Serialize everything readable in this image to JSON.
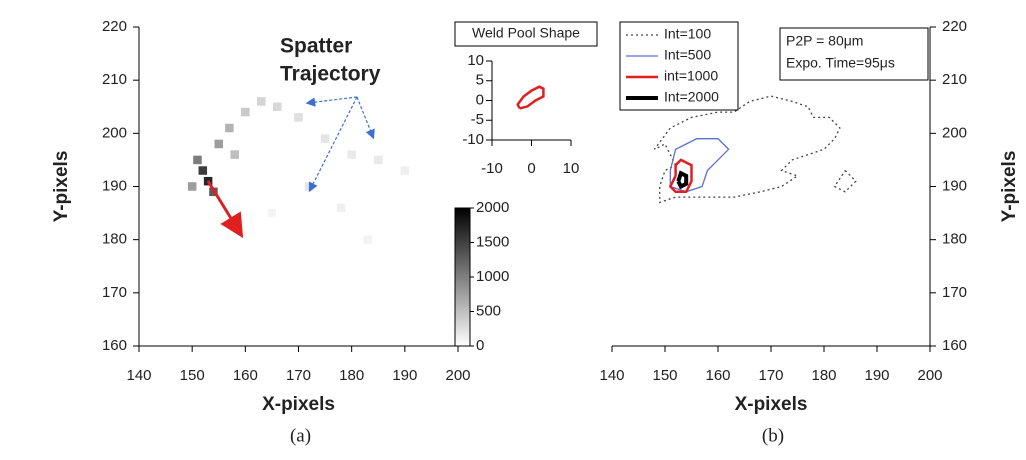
{
  "chart_data": [
    {
      "type": "heatmap",
      "caption": "(a)",
      "x_label": "X-pixels",
      "y_label": "Y-pixels",
      "annotation_lines": [
        "Spatter",
        "Trajectory"
      ],
      "xlim": [
        140,
        200
      ],
      "xticks": [
        140,
        150,
        160,
        170,
        180,
        190,
        200
      ],
      "ylim": [
        160,
        220
      ],
      "yticks": [
        160,
        170,
        180,
        190,
        200,
        210,
        220
      ],
      "x": [
        153,
        152,
        154,
        151,
        155,
        157,
        160,
        163,
        166,
        170,
        175,
        180,
        185,
        172,
        178,
        190,
        165,
        183,
        150,
        158
      ],
      "y": [
        191,
        193,
        189,
        195,
        198,
        201,
        204,
        206,
        205,
        203,
        199,
        196,
        195,
        190,
        186,
        193,
        185,
        180,
        190,
        196
      ],
      "values": [
        2000,
        1800,
        1500,
        1200,
        900,
        700,
        500,
        400,
        350,
        300,
        250,
        200,
        200,
        250,
        150,
        150,
        100,
        100,
        900,
        600
      ],
      "clim": [
        0,
        2000
      ],
      "cticks": [
        0,
        500,
        1000,
        1500,
        2000
      ]
    },
    {
      "type": "line",
      "title": "Weld Pool Shape",
      "xlim": [
        -10,
        10
      ],
      "xticks": [
        -10,
        0,
        10
      ],
      "ylim": [
        -10,
        10
      ],
      "yticks": [
        -10,
        -5,
        0,
        5,
        10
      ],
      "series": [
        {
          "color": "#e02020",
          "x": [
            -3,
            -3.5,
            -2,
            0,
            2,
            3,
            3,
            1,
            -1,
            -3
          ],
          "y": [
            -2,
            -1,
            1,
            2.5,
            3.5,
            3,
            1,
            0,
            -1.5,
            -2
          ]
        }
      ]
    },
    {
      "type": "contour",
      "caption": "(b)",
      "x_label": "X-pixels",
      "y_label": "Y-pixels",
      "notes": [
        "P2P = 80μm",
        "Expo. Time=95μs"
      ],
      "legend": "upper left",
      "y_axis_side": "right",
      "xlim": [
        140,
        200
      ],
      "xticks": [
        140,
        150,
        160,
        170,
        180,
        190,
        200
      ],
      "ylim": [
        160,
        220
      ],
      "yticks": [
        160,
        170,
        180,
        190,
        200,
        210,
        220
      ],
      "series": [
        {
          "name": "Int=100",
          "color": "#444444",
          "style": "dotted",
          "x": [
            152,
            150,
            148,
            151,
            155,
            160,
            163,
            166,
            170,
            174,
            177,
            178,
            181,
            183,
            182,
            180,
            177,
            174,
            172,
            175,
            172,
            168,
            163,
            157,
            152,
            149,
            149,
            150,
            152,
            null,
            184,
            186,
            184,
            182,
            184
          ],
          "y": [
            194,
            198,
            197,
            201,
            203,
            204,
            204,
            206,
            207,
            206,
            205,
            203,
            203,
            201,
            199,
            197,
            196,
            195,
            193,
            192,
            190,
            189,
            188,
            188,
            188,
            187,
            190,
            193,
            194,
            null,
            193,
            191,
            189,
            190,
            193
          ]
        },
        {
          "name": "Int=500",
          "color": "#5a70d0",
          "style": "solid",
          "x": [
            151,
            152,
            154,
            156,
            160,
            162,
            160,
            158,
            157,
            154,
            151,
            151
          ],
          "y": [
            193,
            197,
            198,
            199,
            199,
            197,
            195,
            193,
            190,
            189,
            190,
            193
          ]
        },
        {
          "name": "int=1000",
          "color": "#e02020",
          "style": "solid",
          "x": [
            152,
            152,
            153,
            155,
            155,
            154,
            152,
            151,
            152
          ],
          "y": [
            192,
            194,
            195,
            194,
            191,
            189,
            189,
            190,
            192
          ]
        },
        {
          "name": "Int=2000",
          "color": "#000000",
          "style": "solid",
          "x": [
            152.5,
            153,
            154,
            154,
            153,
            152.5
          ],
          "y": [
            191,
            192.5,
            192,
            190.5,
            190,
            191
          ]
        }
      ]
    }
  ]
}
